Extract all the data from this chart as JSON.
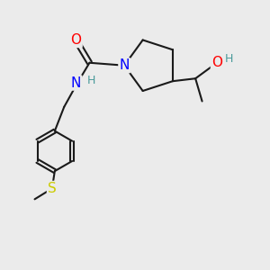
{
  "bg_color": "#ebebeb",
  "bond_color": "#1a1a1a",
  "bond_width": 1.5,
  "atom_colors": {
    "O": "#ff0000",
    "N": "#0000ff",
    "S": "#cccc00",
    "H": "#4a9a9a",
    "C": "#1a1a1a"
  },
  "font_size_atom": 11,
  "font_size_small": 9
}
